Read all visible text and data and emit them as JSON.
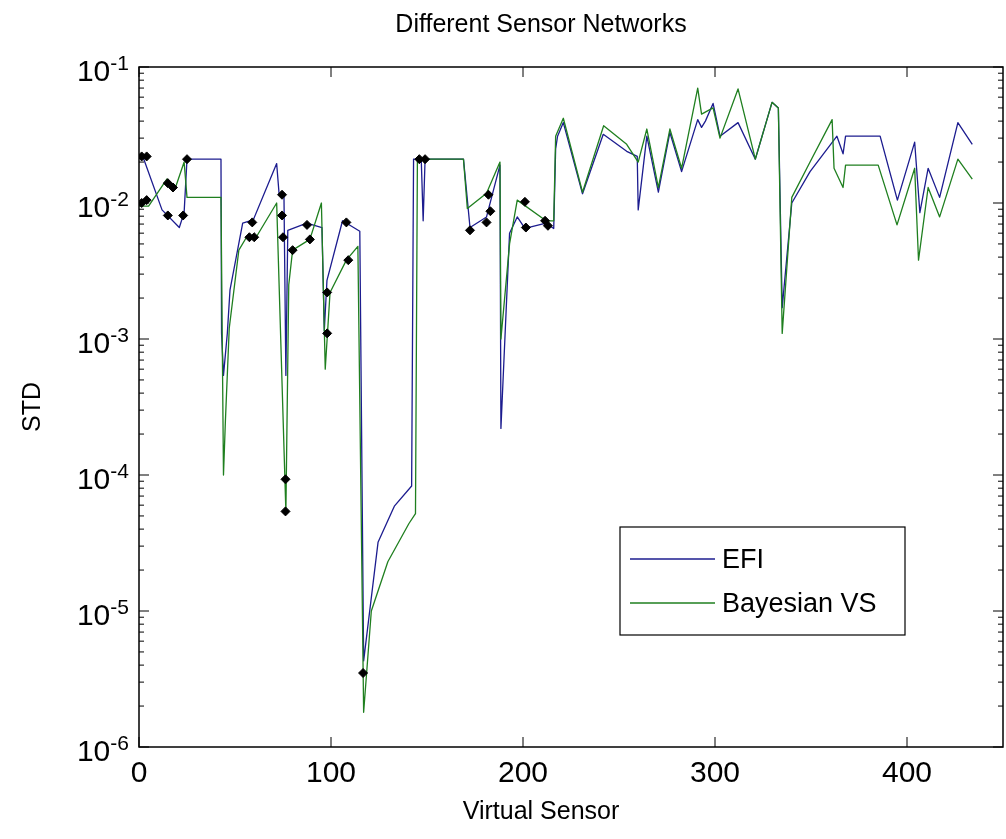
{
  "chart_data": {
    "type": "line",
    "title": "Different Sensor Networks",
    "xlabel": "Virtual Sensor",
    "ylabel": "STD",
    "log": "y",
    "xlim": [
      0,
      450
    ],
    "xticks": [
      0,
      100,
      200,
      300,
      400
    ],
    "ylim": [
      1e-06,
      0.1
    ],
    "yticks": [
      {
        "value": 1e-06,
        "label": "10$^{-6}$"
      },
      {
        "value": 1e-05,
        "label": "10$^{-5}$"
      },
      {
        "value": 0.0001,
        "label": "10$^{-4}$"
      },
      {
        "value": 0.001,
        "label": "10$^{-3}$"
      },
      {
        "value": 0.01,
        "label": "10$^{-2}$"
      },
      {
        "value": 0.1,
        "label": "10$^{-1}$"
      }
    ],
    "legend": "bottom right",
    "series": [
      {
        "name": "EFI",
        "color": "#1c1c8f",
        "x": [
          0,
          2,
          12,
          21,
          23.5,
          25,
          42.7,
          43,
          44,
          46,
          47.4,
          54,
          59.5,
          71.7,
          73,
          75.5,
          76.5,
          77.5,
          87.4,
          95.3,
          96.5,
          97.9,
          106,
          115,
          117,
          124.5,
          133,
          142,
          143,
          147,
          148,
          149,
          169,
          172.4,
          181,
          188,
          188.5,
          193,
          197,
          201,
          212,
          216,
          217,
          218,
          221,
          231,
          241.8,
          254,
          259.5,
          260,
          264.5,
          270.5,
          276.5,
          282.6,
          291,
          293,
          295,
          299,
          302.6,
          312,
          321,
          329.7,
          333,
          335,
          340,
          349.5,
          363.5,
          366.7,
          368,
          386,
          395,
          404,
          406.7,
          411,
          417,
          426.5,
          434
        ],
        "values": [
          0.022,
          0.022,
          0.0089,
          0.0066,
          0.0085,
          0.021,
          0.021,
          0.0011,
          0.00054,
          0.0011,
          0.0023,
          0.0071,
          0.0075,
          0.0195,
          0.0115,
          0.0115,
          0.00054,
          0.0063,
          0.0071,
          0.0066,
          0.00115,
          0.0027,
          0.0074,
          0.0062,
          4.3e-06,
          3.2e-05,
          5.9e-05,
          8.3e-05,
          0.021,
          0.021,
          0.0074,
          0.021,
          0.021,
          0.0066,
          0.0079,
          0.019,
          0.00022,
          0.006,
          0.0079,
          0.0065,
          0.0071,
          0.0065,
          0.025,
          0.031,
          0.039,
          0.0117,
          0.032,
          0.024,
          0.022,
          0.0089,
          0.031,
          0.012,
          0.033,
          0.017,
          0.041,
          0.036,
          0.04,
          0.054,
          0.031,
          0.039,
          0.021,
          0.055,
          0.05,
          0.0017,
          0.01,
          0.017,
          0.031,
          0.023,
          0.031,
          0.031,
          0.0105,
          0.028,
          0.0085,
          0.018,
          0.011,
          0.039,
          0.027
        ]
      },
      {
        "name": "Bayesian VS",
        "color": "#1f7f1f",
        "x": [
          0,
          5,
          14.5,
          19,
          23.5,
          25,
          42.7,
          44,
          45,
          47,
          52,
          56,
          61,
          71.7,
          76.5,
          78,
          80,
          89,
          95,
          97,
          99.5,
          108,
          114,
          117,
          121,
          129.6,
          140.6,
          144,
          145,
          169,
          171,
          181,
          188,
          188.5,
          193,
          197,
          212,
          216,
          217,
          221,
          231,
          242,
          254,
          260,
          264.5,
          270.5,
          276.5,
          282.6,
          291,
          293,
          299,
          302.6,
          312,
          321,
          329.7,
          333,
          335,
          340,
          349.5,
          361,
          362,
          366.7,
          368,
          385,
          394.8,
          404,
          406,
          411,
          417,
          426.5,
          434
        ],
        "values": [
          0.0095,
          0.0095,
          0.015,
          0.013,
          0.02,
          0.011,
          0.011,
          0.0001,
          0.00025,
          0.0012,
          0.0045,
          0.0056,
          0.0056,
          0.01,
          5.4e-05,
          0.0025,
          0.0045,
          0.0054,
          0.01,
          0.0006,
          0.0022,
          0.0038,
          0.0048,
          1.8e-06,
          1e-05,
          2.3e-05,
          4.4e-05,
          5.2e-05,
          0.021,
          0.021,
          0.0091,
          0.0118,
          0.02,
          0.001,
          0.005,
          0.0105,
          0.0074,
          0.0074,
          0.031,
          0.042,
          0.012,
          0.037,
          0.027,
          0.02,
          0.035,
          0.013,
          0.035,
          0.018,
          0.07,
          0.045,
          0.05,
          0.03,
          0.069,
          0.021,
          0.055,
          0.05,
          0.0011,
          0.011,
          0.02,
          0.041,
          0.018,
          0.013,
          0.019,
          0.019,
          0.0069,
          0.018,
          0.0038,
          0.013,
          0.0079,
          0.021,
          0.015
        ]
      },
      {
        "type": "scatter",
        "marker": "diamond",
        "color": "#000000",
        "x": [
          1.4,
          4,
          1.4,
          4,
          15,
          17.7,
          15,
          23,
          25,
          57.5,
          59,
          60,
          74.5,
          74.5,
          75,
          76.3,
          76.3,
          80,
          87.5,
          89,
          98,
          98,
          108,
          109,
          116.7,
          146,
          149,
          172.4,
          182,
          183,
          181,
          201,
          201.5,
          211.5,
          213
        ],
        "values": [
          0.022,
          0.022,
          0.01,
          0.0105,
          0.014,
          0.013,
          0.0081,
          0.0081,
          0.021,
          0.0056,
          0.0072,
          0.0056,
          0.0115,
          0.0081,
          0.0056,
          9.3e-05,
          5.4e-05,
          0.0045,
          0.0069,
          0.0054,
          0.0022,
          0.0011,
          0.0072,
          0.0038,
          3.5e-06,
          0.021,
          0.021,
          0.0063,
          0.0115,
          0.0087,
          0.0072,
          0.0102,
          0.0066,
          0.0074,
          0.0068
        ]
      }
    ]
  }
}
